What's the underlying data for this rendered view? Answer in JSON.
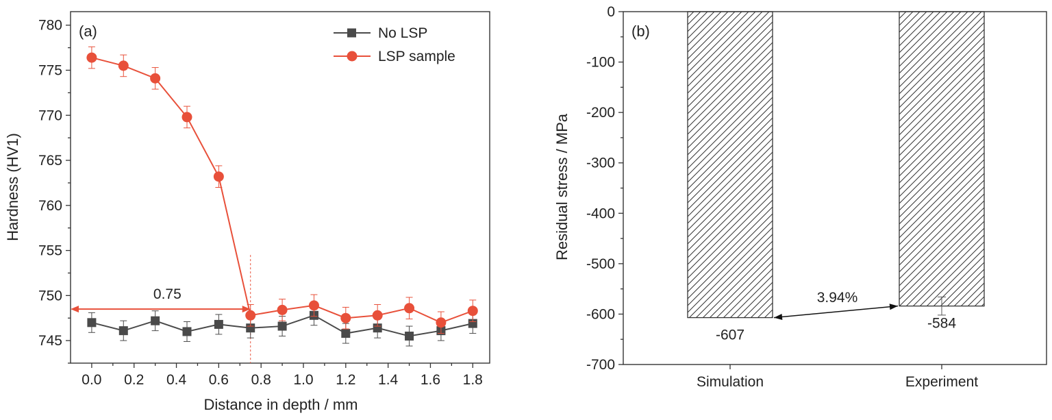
{
  "chart_data": [
    {
      "type": "line",
      "panel_label": "(a)",
      "xlabel": "Distance in depth / mm",
      "ylabel": "Hardness (HV1)",
      "xlim": [
        -0.1,
        1.88
      ],
      "ylim": [
        742.5,
        781.5
      ],
      "xticks": [
        "0.0",
        "0.2",
        "0.4",
        "0.6",
        "0.8",
        "1.0",
        "1.2",
        "1.4",
        "1.6",
        "1.8"
      ],
      "xtick_values": [
        0.0,
        0.2,
        0.4,
        0.6,
        0.8,
        1.0,
        1.2,
        1.4,
        1.6,
        1.8
      ],
      "yticks": [
        "745",
        "750",
        "755",
        "760",
        "765",
        "770",
        "775",
        "780"
      ],
      "ytick_values": [
        745,
        750,
        755,
        760,
        765,
        770,
        775,
        780
      ],
      "legend_position": "top-right",
      "series": [
        {
          "name": "No LSP",
          "color": "#4a4a4a",
          "marker": "square",
          "x": [
            0.0,
            0.15,
            0.3,
            0.45,
            0.6,
            0.75,
            0.9,
            1.05,
            1.2,
            1.35,
            1.5,
            1.65,
            1.8
          ],
          "y": [
            747.0,
            746.1,
            747.2,
            746.0,
            746.8,
            746.4,
            746.6,
            747.8,
            745.8,
            746.4,
            745.5,
            746.1,
            746.9
          ],
          "err": [
            1.1,
            1.1,
            1.1,
            1.1,
            1.1,
            1.1,
            1.1,
            1.1,
            1.1,
            1.1,
            1.1,
            1.1,
            1.1
          ]
        },
        {
          "name": "LSP sample",
          "color": "#e8503a",
          "marker": "circle",
          "x": [
            0.0,
            0.15,
            0.3,
            0.45,
            0.6,
            0.75,
            0.9,
            1.05,
            1.2,
            1.35,
            1.5,
            1.65,
            1.8
          ],
          "y": [
            776.4,
            775.5,
            774.1,
            769.8,
            763.2,
            747.8,
            748.4,
            748.9,
            747.5,
            747.8,
            748.6,
            747.0,
            748.3
          ],
          "err": [
            1.2,
            1.2,
            1.2,
            1.2,
            1.2,
            1.2,
            1.2,
            1.2,
            1.2,
            1.2,
            1.2,
            1.2,
            1.2
          ]
        }
      ],
      "annotation": {
        "text": "0.75",
        "x_from": -0.1,
        "x_to": 0.75,
        "y": 748.5,
        "vline_x": 0.75,
        "color": "#e8503a"
      }
    },
    {
      "type": "bar",
      "panel_label": "(b)",
      "xlabel": "",
      "ylabel": "Residual stress / MPa",
      "categories": [
        "Simulation",
        "Experiment"
      ],
      "values": [
        -607,
        -584
      ],
      "value_labels": [
        "-607",
        "-584"
      ],
      "experiment_error": 18,
      "ylim": [
        -700,
        0
      ],
      "yticks": [
        "0",
        "-100",
        "-200",
        "-300",
        "-400",
        "-500",
        "-600",
        "-700"
      ],
      "ytick_values": [
        0,
        -100,
        -200,
        -300,
        -400,
        -500,
        -600,
        -700
      ],
      "fill": "diagonal-hatch",
      "annotation": {
        "text": "3.94%"
      }
    }
  ]
}
